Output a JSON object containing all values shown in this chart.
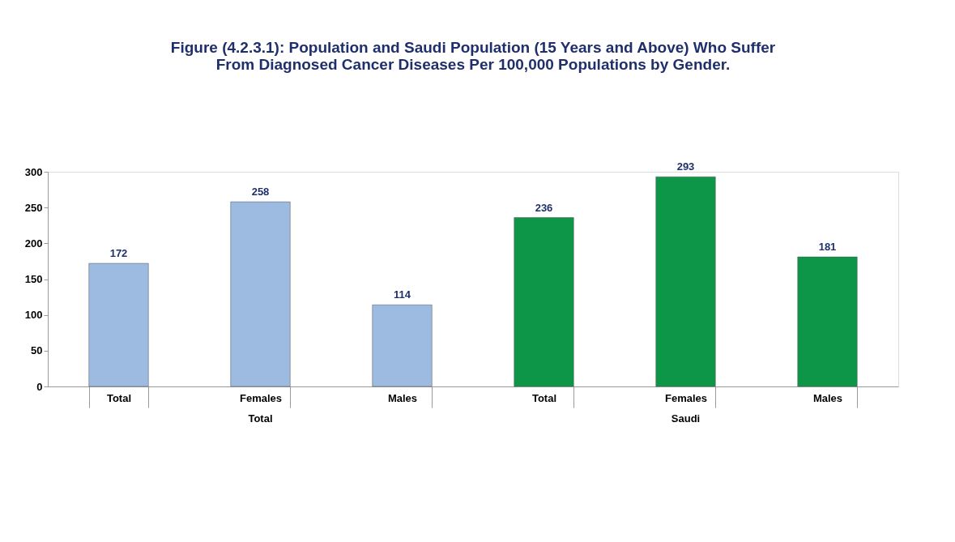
{
  "chart_data": {
    "type": "bar",
    "title": "Figure (4.2.3.1): Population and Saudi Population (15 Years and Above) Who Suffer\nFrom Diagnosed Cancer Diseases Per 100,000 Populations by Gender.",
    "categories": [
      "Total",
      "Females",
      "Males",
      "Total",
      "Females",
      "Males"
    ],
    "values": [
      172,
      258,
      114,
      236,
      293,
      181
    ],
    "colors": [
      "#9dbbe0",
      "#9dbbe0",
      "#9dbbe0",
      "#0e9648",
      "#0e9648",
      "#0e9648"
    ],
    "ylim": [
      0,
      300
    ],
    "yticks": [
      0,
      50,
      100,
      150,
      200,
      250,
      300
    ],
    "data_labels": true,
    "grid": false,
    "annotations": [
      "Total",
      "Saudi"
    ]
  }
}
